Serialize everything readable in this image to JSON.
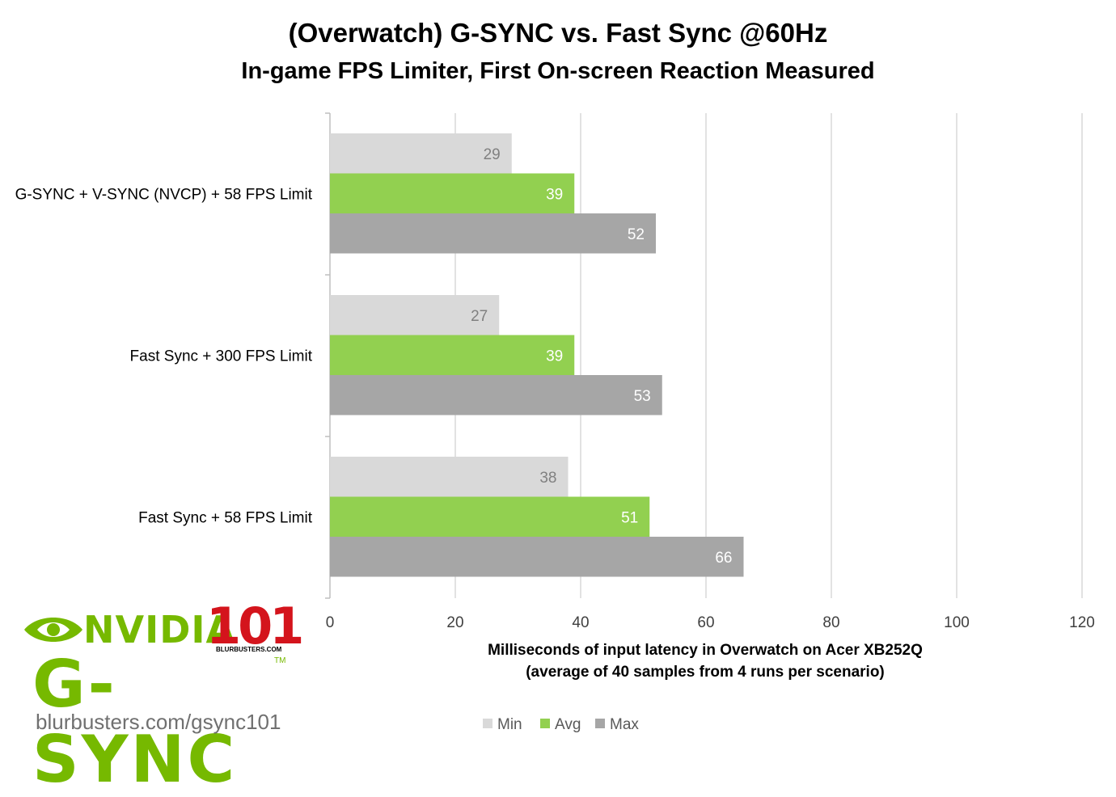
{
  "chart_data": {
    "type": "bar",
    "orientation": "horizontal",
    "title": "(Overwatch) G-SYNC vs. Fast Sync @60Hz",
    "subtitle": "In-game FPS Limiter, First On-screen Reaction Measured",
    "categories": [
      "G-SYNC + V-SYNC (NVCP) + 58 FPS Limit",
      "Fast Sync + 300 FPS Limit",
      "Fast Sync + 58 FPS Limit"
    ],
    "series": [
      {
        "name": "Min",
        "values": [
          29,
          27,
          38
        ],
        "color": "#d9d9d9",
        "label_color": "#808080"
      },
      {
        "name": "Avg",
        "values": [
          39,
          39,
          51
        ],
        "color": "#92d050",
        "label_color": "#ffffff"
      },
      {
        "name": "Max",
        "values": [
          52,
          53,
          66
        ],
        "color": "#a6a6a6",
        "label_color": "#ffffff"
      }
    ],
    "xlim": [
      0,
      120
    ],
    "xticks": [
      "0",
      "20",
      "40",
      "60",
      "80",
      "100",
      "120"
    ],
    "xlabel_line1": "Milliseconds of input latency in Overwatch on Acer XB252Q",
    "xlabel_line2": "(average of 40 samples from 4 runs per scenario)",
    "grid": true,
    "legend_position": "bottom"
  },
  "logo": {
    "nvidia": "NVIDIA",
    "number": "101",
    "site": "BLURBUSTERS.COM",
    "gsync": "G-SYNC",
    "tm": "TM",
    "url": "blurbusters.com/gsync101"
  }
}
